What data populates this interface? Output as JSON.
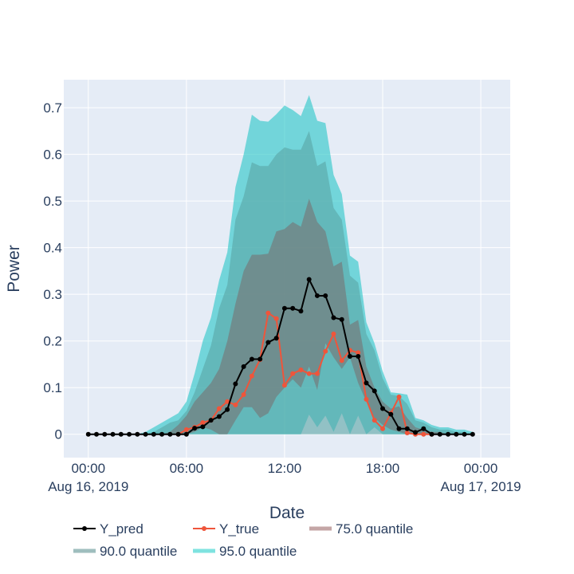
{
  "chart_data": {
    "type": "line",
    "xlabel": "Date",
    "ylabel": "Power",
    "x_start": "2019-08-16 00:00",
    "x_step_minutes": 30,
    "x_ticks": [
      {
        "label": "00:00",
        "sublabel": "Aug 16, 2019",
        "hour": 0
      },
      {
        "label": "06:00",
        "sublabel": "",
        "hour": 6
      },
      {
        "label": "12:00",
        "sublabel": "",
        "hour": 12
      },
      {
        "label": "18:00",
        "sublabel": "",
        "hour": 18
      },
      {
        "label": "00:00",
        "sublabel": "Aug 17, 2019",
        "hour": 24
      }
    ],
    "xlim_hours": [
      -1.5,
      25.8
    ],
    "ylim": [
      -0.05,
      0.76
    ],
    "y_ticks": [
      {
        "value": 0,
        "label": "0"
      },
      {
        "value": 0.1,
        "label": "0.1"
      },
      {
        "value": 0.2,
        "label": "0.2"
      },
      {
        "value": 0.3,
        "label": "0.3"
      },
      {
        "value": 0.4,
        "label": "0.4"
      },
      {
        "value": 0.5,
        "label": "0.5"
      },
      {
        "value": 0.6,
        "label": "0.6"
      },
      {
        "value": 0.7,
        "label": "0.7"
      }
    ],
    "grid": true,
    "legend_position": "bottom",
    "bands": [
      {
        "name": "95.0 quantile",
        "color": "#34cacb",
        "opacity": 0.65,
        "legend_color": "#7fe3e0",
        "x_hours": [
          3.0,
          3.5,
          4.0,
          4.5,
          5.0,
          5.5,
          6.0,
          6.5,
          7.0,
          7.5,
          8.0,
          8.5,
          9.0,
          9.5,
          10.0,
          10.5,
          11.0,
          11.5,
          12.0,
          12.5,
          13.0,
          13.5,
          14.0,
          14.5,
          15.0,
          15.5,
          16.0,
          16.5,
          17.0,
          17.5,
          18.0,
          18.5,
          19.0,
          19.5,
          20.0,
          20.5,
          21.0,
          21.5,
          22.0,
          22.5,
          23.0,
          23.5
        ],
        "upper": [
          0.0,
          0.005,
          0.015,
          0.025,
          0.035,
          0.045,
          0.07,
          0.13,
          0.2,
          0.25,
          0.33,
          0.39,
          0.53,
          0.6,
          0.685,
          0.672,
          0.67,
          0.686,
          0.705,
          0.695,
          0.682,
          0.727,
          0.672,
          0.667,
          0.556,
          0.515,
          0.383,
          0.37,
          0.24,
          0.195,
          0.135,
          0.09,
          0.088,
          0.085,
          0.035,
          0.03,
          0.02,
          0.015,
          0.015,
          0.01,
          0.01,
          0.005
        ],
        "lower": [
          0.0,
          0.0,
          0.0,
          0.0,
          0.0,
          0.0,
          0.0,
          0.0,
          0.0,
          0.0,
          0.0,
          0.0,
          0.0,
          0.0,
          0.0,
          0.0,
          0.0,
          0.0,
          0.0,
          0.0,
          0.0,
          0.042,
          0.015,
          0.04,
          0.005,
          0.045,
          0.0,
          0.04,
          0.0,
          0.015,
          0.0,
          0.0,
          0.0,
          0.0,
          0.0,
          0.0,
          0.0,
          0.0,
          0.0,
          0.0,
          0.0,
          0.0
        ]
      },
      {
        "name": "90.0 quantile",
        "color": "#5aa5a5",
        "opacity": 0.6,
        "legend_color": "#9fbebe",
        "x_hours": [
          3.5,
          4.0,
          4.5,
          5.0,
          5.5,
          6.0,
          6.5,
          7.0,
          7.5,
          8.0,
          8.5,
          9.0,
          9.5,
          10.0,
          10.5,
          11.0,
          11.5,
          12.0,
          12.5,
          13.0,
          13.5,
          14.0,
          14.5,
          15.0,
          15.5,
          16.0,
          16.5,
          17.0,
          17.5,
          18.0,
          18.5,
          19.0,
          19.5,
          20.0,
          20.5,
          21.0,
          21.5,
          22.0,
          22.5,
          23.0
        ],
        "upper": [
          0.0,
          0.005,
          0.015,
          0.025,
          0.03,
          0.05,
          0.09,
          0.14,
          0.19,
          0.27,
          0.32,
          0.46,
          0.51,
          0.583,
          0.575,
          0.575,
          0.6,
          0.615,
          0.61,
          0.61,
          0.65,
          0.575,
          0.585,
          0.485,
          0.46,
          0.34,
          0.325,
          0.215,
          0.18,
          0.12,
          0.085,
          0.082,
          0.065,
          0.03,
          0.025,
          0.015,
          0.01,
          0.01,
          0.005,
          0.005
        ],
        "lower": [
          0.0,
          0.0,
          0.0,
          0.0,
          0.0,
          0.0,
          0.0,
          0.0,
          0.0,
          0.0,
          0.0,
          0.0,
          0.0,
          0.0,
          0.0,
          0.0,
          0.0,
          0.0,
          0.0,
          0.0,
          0.0,
          0.0,
          0.0,
          0.0,
          0.0,
          0.0,
          0.0,
          0.0,
          0.0,
          0.0,
          0.0,
          0.0,
          0.0,
          0.0,
          0.0,
          0.0,
          0.0,
          0.0,
          0.0,
          0.0
        ]
      },
      {
        "name": "75.0 quantile",
        "color": "#7a6c6c",
        "opacity": 0.55,
        "legend_color": "#c4a6a6",
        "x_hours": [
          4.5,
          5.0,
          5.5,
          6.0,
          6.5,
          7.0,
          7.5,
          8.0,
          8.5,
          9.0,
          9.5,
          10.0,
          10.5,
          11.0,
          11.5,
          12.0,
          12.5,
          13.0,
          13.5,
          14.0,
          14.5,
          15.0,
          15.5,
          16.0,
          16.5,
          17.0,
          17.5,
          18.0,
          18.5,
          19.0,
          19.5,
          20.0,
          20.5,
          21.0,
          21.5,
          22.0
        ],
        "upper": [
          0.0,
          0.005,
          0.02,
          0.04,
          0.07,
          0.09,
          0.11,
          0.14,
          0.2,
          0.28,
          0.35,
          0.385,
          0.385,
          0.387,
          0.435,
          0.44,
          0.455,
          0.445,
          0.505,
          0.455,
          0.435,
          0.36,
          0.37,
          0.235,
          0.245,
          0.145,
          0.1,
          0.07,
          0.055,
          0.06,
          0.035,
          0.015,
          0.01,
          0.005,
          0.005,
          0.0
        ],
        "lower": [
          0.0,
          0.0,
          0.0,
          0.0,
          0.005,
          0.015,
          0.01,
          0.0,
          0.0,
          0.03,
          0.058,
          0.058,
          0.035,
          0.045,
          0.08,
          0.1,
          0.118,
          0.1,
          0.145,
          0.095,
          0.195,
          0.165,
          0.14,
          0.165,
          0.11,
          0.07,
          0.035,
          0.02,
          0.01,
          0.005,
          0.0,
          0.0,
          0.0,
          0.0,
          0.0,
          0.0
        ]
      }
    ],
    "series": [
      {
        "name": "Y_true",
        "color": "#ef553b",
        "x_hours": [
          5.5,
          6.0,
          6.5,
          7.0,
          7.5,
          8.0,
          8.5,
          9.0,
          9.5,
          10.0,
          10.5,
          11.0,
          11.5,
          12.0,
          12.5,
          13.0,
          13.5,
          14.0,
          14.5,
          15.0,
          15.5,
          16.0,
          16.5,
          17.0,
          17.5,
          18.0,
          18.5,
          19.0,
          19.5,
          20.0,
          20.5,
          21.0
        ],
        "values": [
          0.0,
          0.01,
          0.015,
          0.025,
          0.03,
          0.055,
          0.07,
          0.063,
          0.085,
          0.125,
          0.16,
          0.26,
          0.248,
          0.105,
          0.13,
          0.138,
          0.13,
          0.13,
          0.178,
          0.215,
          0.158,
          0.18,
          0.175,
          0.075,
          0.03,
          0.012,
          0.045,
          0.08,
          0.003,
          0.0,
          0.0,
          0.0
        ]
      },
      {
        "name": "Y_pred",
        "color": "#000000",
        "x_hours": [
          0.0,
          0.5,
          1.0,
          1.5,
          2.0,
          2.5,
          3.0,
          3.5,
          4.0,
          4.5,
          5.0,
          5.5,
          6.0,
          6.5,
          7.0,
          7.5,
          8.0,
          8.5,
          9.0,
          9.5,
          10.0,
          10.5,
          11.0,
          11.5,
          12.0,
          12.5,
          13.0,
          13.5,
          14.0,
          14.5,
          15.0,
          15.5,
          16.0,
          16.5,
          17.0,
          17.5,
          18.0,
          18.5,
          19.0,
          19.5,
          20.0,
          20.5,
          21.0,
          21.5,
          22.0,
          22.5,
          23.0,
          23.5
        ],
        "values": [
          0.0,
          0.0,
          0.0,
          0.0,
          0.0,
          0.0,
          0.0,
          0.0,
          0.0,
          0.0,
          0.0,
          0.0,
          0.0,
          0.013,
          0.016,
          0.03,
          0.038,
          0.053,
          0.108,
          0.145,
          0.161,
          0.161,
          0.197,
          0.206,
          0.27,
          0.27,
          0.264,
          0.332,
          0.297,
          0.297,
          0.25,
          0.246,
          0.167,
          0.167,
          0.11,
          0.093,
          0.055,
          0.043,
          0.012,
          0.012,
          0.004,
          0.012,
          0.0,
          0.0,
          0.0,
          0.0,
          0.0,
          0.0
        ]
      }
    ],
    "legend": [
      {
        "name": "Y_pred",
        "kind": "line-marker",
        "color": "#000000"
      },
      {
        "name": "Y_true",
        "kind": "line-marker",
        "color": "#ef553b"
      },
      {
        "name": "75.0 quantile",
        "kind": "band",
        "color": "#c4a6a6"
      },
      {
        "name": "90.0 quantile",
        "kind": "band",
        "color": "#9fbebe"
      },
      {
        "name": "95.0 quantile",
        "kind": "band",
        "color": "#7fe3e0"
      }
    ],
    "colors": {
      "plot_bg": "#e5ecf6",
      "grid": "#ffffff",
      "text": "#2a3f5f"
    }
  }
}
